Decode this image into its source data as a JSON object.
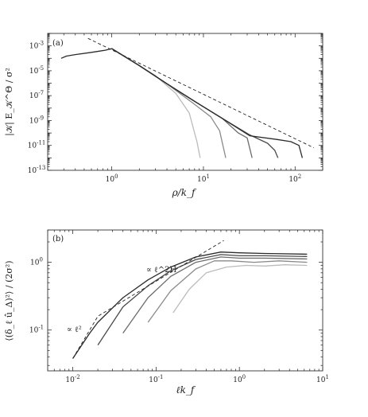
{
  "chart_data": [
    {
      "type": "line",
      "panel_label": "(a)",
      "xlabel": "ρ/k_f",
      "ylabel": "|𝒦| E_𝒦^Θ / σ²",
      "xscale": "log",
      "yscale": "log",
      "xlim": [
        0.2,
        200
      ],
      "ylim": [
        1e-13,
        0.01
      ],
      "xticks": [
        1,
        10,
        100
      ],
      "xtick_labels": [
        "10^0",
        "10^1",
        "10^2"
      ],
      "yticks": [
        0.001,
        1e-05,
        1e-07,
        1e-09,
        1e-11,
        1e-13
      ],
      "ytick_labels": [
        "10^-3",
        "10^-5",
        "10^-7",
        "10^-9",
        "10^-11",
        "10^-13"
      ],
      "reference_line": {
        "style": "dashed",
        "points": [
          [
            0.55,
            0.004
          ],
          [
            160,
            6.5e-12
          ]
        ]
      },
      "series": [
        {
          "color": "#bbbbbb",
          "points": [
            [
              1,
              0.0006
            ],
            [
              2,
              2.6e-05
            ],
            [
              3,
              4e-06
            ],
            [
              5,
              1.5e-07
            ],
            [
              7,
              4e-09
            ],
            [
              8.5,
              2e-11
            ],
            [
              9.2,
              1e-12
            ]
          ]
        },
        {
          "color": "#8a8a8a",
          "points": [
            [
              1,
              0.0006
            ],
            [
              2,
              2.6e-05
            ],
            [
              4,
              9e-07
            ],
            [
              8,
              2e-08
            ],
            [
              12,
              2e-09
            ],
            [
              15,
              1.5e-10
            ],
            [
              17.5,
              1e-12
            ]
          ]
        },
        {
          "color": "#6b6b6b",
          "points": [
            [
              1,
              0.0006
            ],
            [
              2,
              2.6e-05
            ],
            [
              4,
              9e-07
            ],
            [
              8,
              3.5e-08
            ],
            [
              16,
              1.5e-09
            ],
            [
              24,
              1e-10
            ],
            [
              30,
              4e-11
            ],
            [
              34,
              1e-12
            ]
          ]
        },
        {
          "color": "#4a4a4a",
          "points": [
            [
              1,
              0.0006
            ],
            [
              2,
              2.6e-05
            ],
            [
              4,
              9e-07
            ],
            [
              8,
              3.5e-08
            ],
            [
              16,
              1.5e-09
            ],
            [
              32,
              7e-11
            ],
            [
              50,
              1.5e-11
            ],
            [
              60,
              4e-12
            ],
            [
              65,
              1e-12
            ]
          ]
        },
        {
          "color": "#2b2b2b",
          "points": [
            [
              0.28,
              0.0001
            ],
            [
              0.32,
              0.00015
            ],
            [
              0.4,
              0.0002
            ],
            [
              0.6,
              0.0003
            ],
            [
              0.85,
              0.00045
            ],
            [
              1,
              0.0006
            ],
            [
              2,
              2.6e-05
            ],
            [
              4,
              9e-07
            ],
            [
              8,
              3.5e-08
            ],
            [
              16,
              1.5e-09
            ],
            [
              32,
              6e-11
            ],
            [
              64,
              3e-11
            ],
            [
              90,
              2e-11
            ],
            [
              110,
              1e-11
            ],
            [
              120,
              1e-12
            ]
          ]
        }
      ]
    },
    {
      "type": "line",
      "panel_label": "(b)",
      "xlabel": "ℓk_f",
      "ylabel": "⟨(δ_ℓ û_Δ)²⟩ / (2σ²)",
      "xscale": "log",
      "yscale": "log",
      "xlim": [
        0.005,
        10
      ],
      "ylim": [
        0.025,
        3
      ],
      "xticks": [
        0.01,
        0.1,
        1,
        10
      ],
      "xtick_labels": [
        "10^-2",
        "10^-1",
        "10^0",
        "10^1"
      ],
      "yticks": [
        0.1,
        1
      ],
      "ytick_labels": [
        "10^-1",
        "10^0"
      ],
      "annotations": [
        "∝ ℓ²",
        "∝ ℓ^2H"
      ],
      "reference_line": {
        "style": "dashed",
        "points": [
          [
            0.01,
            0.038
          ],
          [
            0.02,
            0.16
          ],
          [
            0.65,
            2.1
          ]
        ]
      },
      "series": [
        {
          "color": "#bbbbbb",
          "points": [
            [
              0.16,
              0.18
            ],
            [
              0.25,
              0.4
            ],
            [
              0.4,
              0.7
            ],
            [
              0.7,
              0.85
            ],
            [
              1.2,
              0.9
            ],
            [
              2,
              0.88
            ],
            [
              3.5,
              0.92
            ],
            [
              6.5,
              0.9
            ]
          ]
        },
        {
          "color": "#8a8a8a",
          "points": [
            [
              0.08,
              0.13
            ],
            [
              0.15,
              0.38
            ],
            [
              0.3,
              0.8
            ],
            [
              0.5,
              1.05
            ],
            [
              0.8,
              1.05
            ],
            [
              1.5,
              1.0
            ],
            [
              3,
              1.05
            ],
            [
              6.5,
              1.0
            ]
          ]
        },
        {
          "color": "#6b6b6b",
          "points": [
            [
              0.04,
              0.09
            ],
            [
              0.08,
              0.3
            ],
            [
              0.15,
              0.62
            ],
            [
              0.3,
              1.0
            ],
            [
              0.6,
              1.2
            ],
            [
              1,
              1.15
            ],
            [
              2,
              1.15
            ],
            [
              6.5,
              1.12
            ]
          ]
        },
        {
          "color": "#4a4a4a",
          "points": [
            [
              0.02,
              0.06
            ],
            [
              0.04,
              0.22
            ],
            [
              0.08,
              0.45
            ],
            [
              0.15,
              0.75
            ],
            [
              0.3,
              1.1
            ],
            [
              0.6,
              1.3
            ],
            [
              1,
              1.25
            ],
            [
              2,
              1.25
            ],
            [
              6.5,
              1.22
            ]
          ]
        },
        {
          "color": "#2b2b2b",
          "points": [
            [
              0.01,
              0.038
            ],
            [
              0.016,
              0.09
            ],
            [
              0.02,
              0.13
            ],
            [
              0.04,
              0.3
            ],
            [
              0.08,
              0.55
            ],
            [
              0.15,
              0.85
            ],
            [
              0.3,
              1.2
            ],
            [
              0.6,
              1.42
            ],
            [
              1,
              1.38
            ],
            [
              2,
              1.35
            ],
            [
              6.5,
              1.32
            ]
          ]
        }
      ]
    }
  ]
}
